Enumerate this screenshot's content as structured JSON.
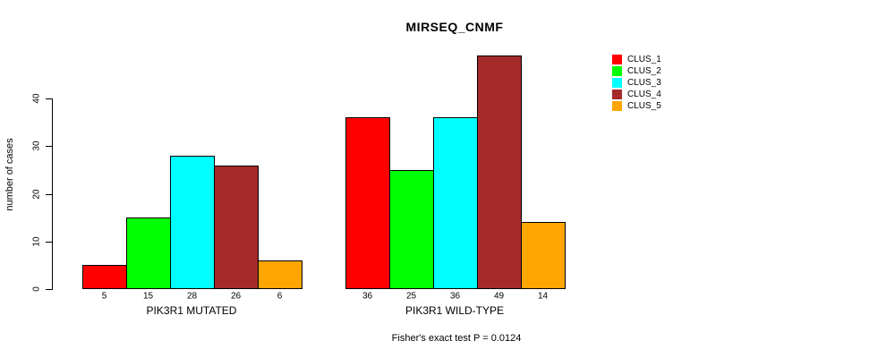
{
  "page": {
    "background": "#ffffff",
    "text_color": "#000000"
  },
  "chart_data": {
    "type": "bar",
    "title": "MIRSEQ_CNMF",
    "ylabel": "number of cases",
    "xlabel": "",
    "ylim": [
      0,
      40
    ],
    "yticks": [
      0,
      10,
      20,
      30,
      40
    ],
    "grid": false,
    "legend_position": "right",
    "bar_border_color": "#000000",
    "series": [
      {
        "name": "CLUS_1",
        "color": "#FF0000"
      },
      {
        "name": "CLUS_2",
        "color": "#00FF00"
      },
      {
        "name": "CLUS_3",
        "color": "#00FFFF"
      },
      {
        "name": "CLUS_4",
        "color": "#A52A2A"
      },
      {
        "name": "CLUS_5",
        "color": "#FFA500"
      }
    ],
    "groups": [
      {
        "label": "PIK3R1 MUTATED",
        "values": [
          5,
          15,
          28,
          26,
          6
        ]
      },
      {
        "label": "PIK3R1 WILD-TYPE",
        "values": [
          36,
          25,
          36,
          49,
          14
        ]
      }
    ],
    "annotation": "Fisher's exact test P = 0.0124"
  }
}
